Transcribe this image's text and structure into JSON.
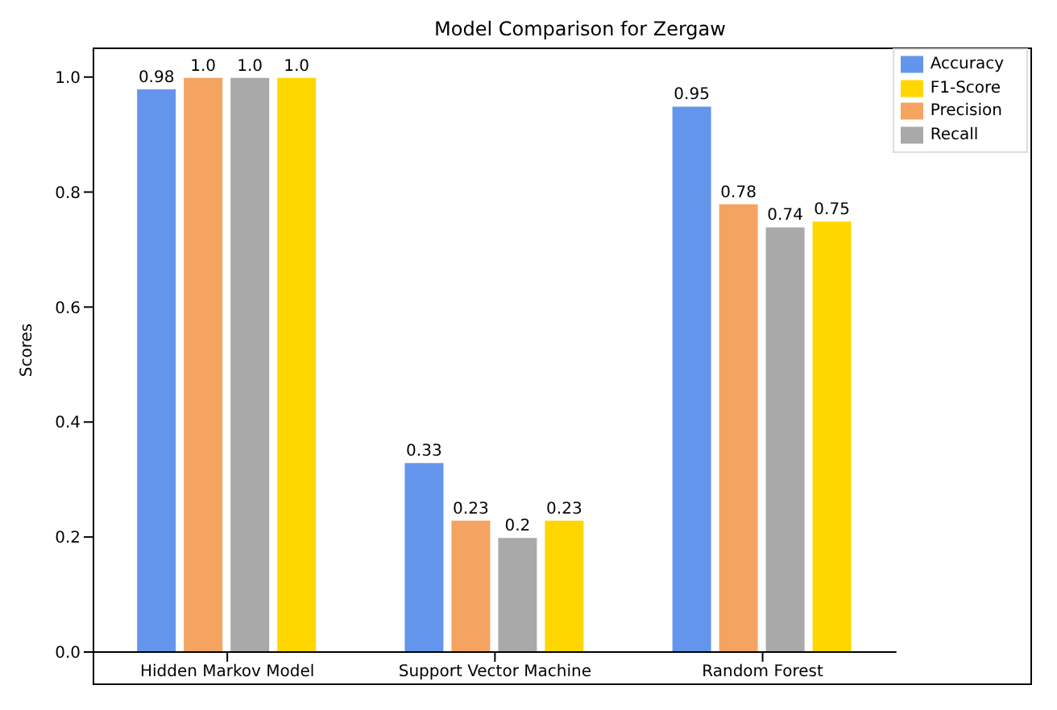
{
  "chart_data": {
    "type": "bar",
    "title": "Model Comparison for Zergaw",
    "ylabel": "Scores",
    "categories": [
      "Hidden Markov Model",
      "Support Vector Machine",
      "Random Forest"
    ],
    "series": [
      {
        "name": "Accuracy",
        "color": "#6495ed",
        "values": [
          0.98,
          0.33,
          0.95
        ],
        "value_labels": [
          "0.98",
          "0.33",
          "0.95"
        ]
      },
      {
        "name": "Precision",
        "color": "#f4a460",
        "values": [
          1.0,
          0.23,
          0.78
        ],
        "value_labels": [
          "1.0",
          "0.23",
          "0.78"
        ]
      },
      {
        "name": "Recall",
        "color": "#a9a9a9",
        "values": [
          1.0,
          0.2,
          0.74
        ],
        "value_labels": [
          "1.0",
          "0.2",
          "0.74"
        ]
      },
      {
        "name": "F1-Score",
        "color": "#ffd700",
        "values": [
          1.0,
          0.23,
          0.75
        ],
        "value_labels": [
          "1.0",
          "0.23",
          "0.75"
        ]
      }
    ],
    "ylim": [
      0,
      1.05
    ],
    "yticks": [
      {
        "value": 0,
        "label": "0.0"
      },
      {
        "value": 0.2,
        "label": "0.2"
      },
      {
        "value": 0.4,
        "label": "0.4"
      },
      {
        "value": 0.6,
        "label": "0.6"
      },
      {
        "value": 0.8,
        "label": "0.8"
      },
      {
        "value": 1,
        "label": "1.0"
      }
    ],
    "legend": "top right"
  }
}
